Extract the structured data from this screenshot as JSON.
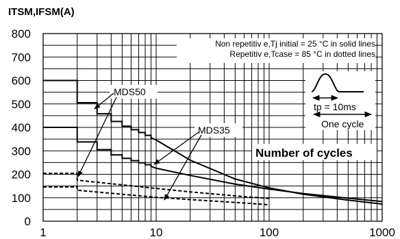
{
  "chart_data": {
    "type": "line",
    "title": "",
    "ylabel": "ITSM,IFSM(A)",
    "xlabel": "",
    "x_scale": "log",
    "xlim": [
      1,
      1000
    ],
    "ylim": [
      0,
      800
    ],
    "x_ticks": [
      "1",
      "10",
      "100",
      "1000"
    ],
    "y_ticks": [
      "0",
      "100",
      "200",
      "300",
      "400",
      "500",
      "600",
      "700",
      "800"
    ],
    "grid": true,
    "notes": [
      "Non repetitiv e,Tj initial = 25 °C in solid lines",
      "Repetitiv e,Tcase = 85 °C in dotted lines"
    ],
    "inset": {
      "tp_label": "tp = 10ms",
      "cycle_label": "One cycle"
    },
    "caption": "Number of cycles",
    "series": [
      {
        "name": "MDS50",
        "style": "solid",
        "x": [
          1,
          2,
          2,
          3,
          3,
          4,
          4,
          5,
          5,
          6,
          6,
          7,
          7,
          8,
          8,
          9,
          9,
          10,
          20,
          50,
          100,
          200,
          500,
          1000
        ],
        "y": [
          600,
          600,
          505,
          505,
          458,
          458,
          425,
          425,
          405,
          405,
          390,
          390,
          378,
          378,
          366,
          366,
          356,
          346,
          260,
          180,
          142,
          115,
          90,
          73
        ]
      },
      {
        "name": "MDS35",
        "style": "solid",
        "x": [
          1,
          2,
          2,
          3,
          3,
          4,
          4,
          5,
          5,
          6,
          6,
          7,
          7,
          8,
          8,
          9,
          9,
          10,
          20,
          50,
          100,
          200,
          500,
          1000
        ],
        "y": [
          400,
          400,
          338,
          338,
          305,
          305,
          283,
          283,
          268,
          268,
          258,
          258,
          249,
          249,
          241,
          241,
          234,
          226,
          195,
          158,
          137,
          118,
          98,
          84
        ]
      },
      {
        "name": "MDS50",
        "style": "dotted",
        "x": [
          1,
          2,
          2,
          10,
          20,
          50,
          100
        ],
        "y": [
          204,
          204,
          175,
          140,
          125,
          108,
          97
        ]
      },
      {
        "name": "MDS35",
        "style": "dotted",
        "x": [
          1,
          2,
          2,
          10,
          20,
          50,
          100
        ],
        "y": [
          146,
          146,
          132,
          102,
          92,
          80,
          70
        ]
      }
    ],
    "annotations": [
      {
        "text": "MDS50",
        "series": [
          0,
          2
        ]
      },
      {
        "text": "MDS35",
        "series": [
          1,
          3
        ]
      }
    ]
  }
}
